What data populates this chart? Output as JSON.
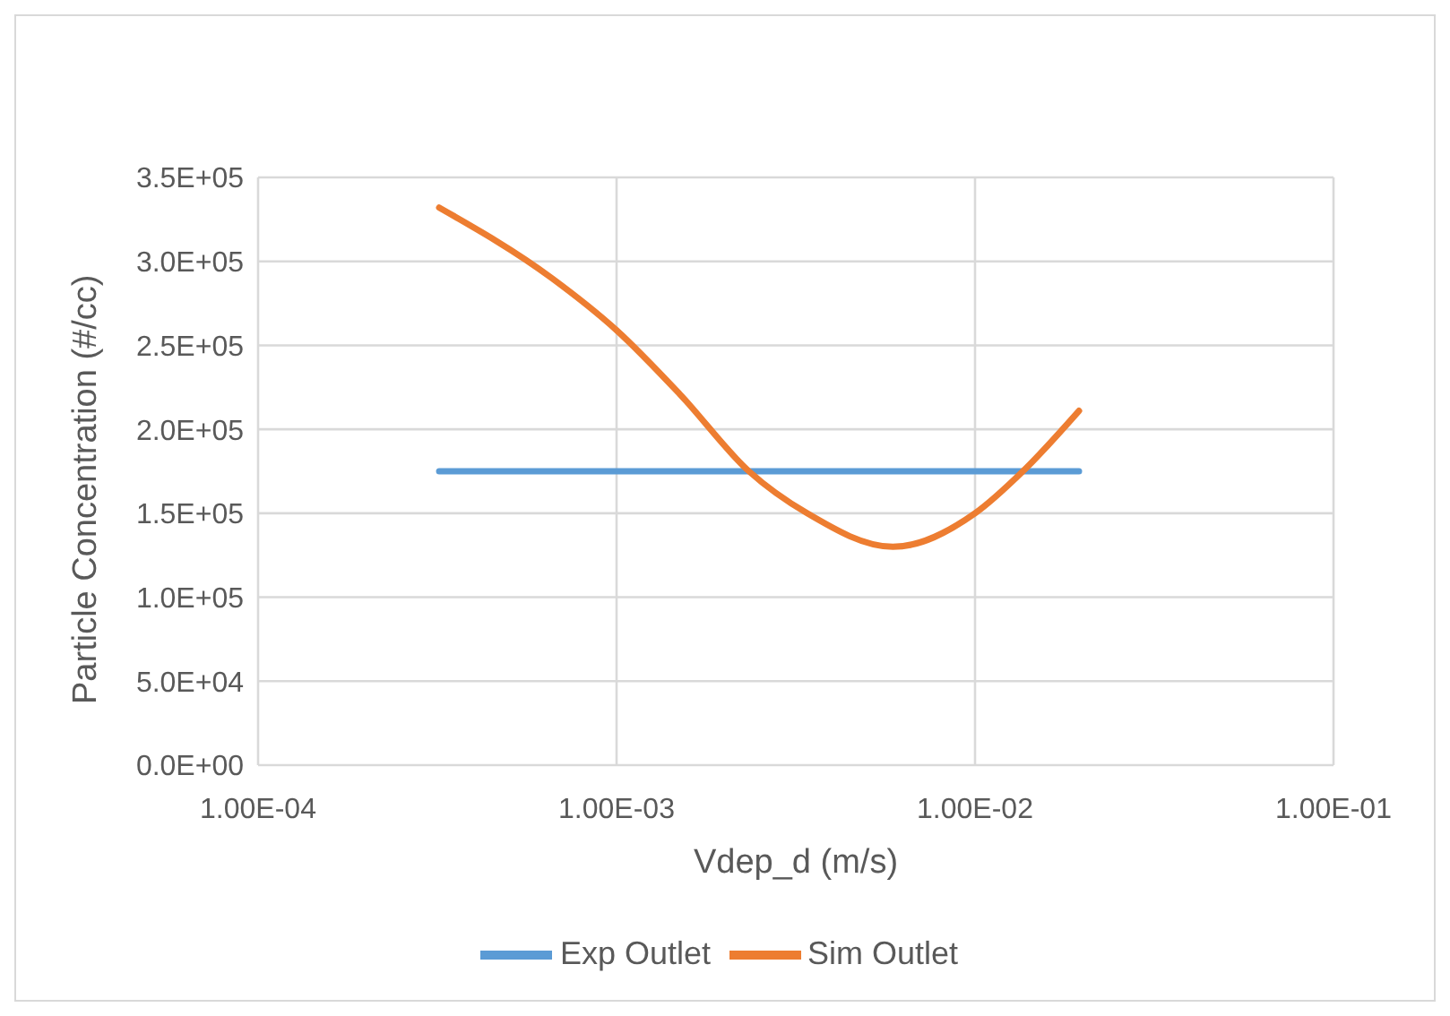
{
  "chart_data": {
    "type": "line",
    "xlabel": "Vdep_d (m/s)",
    "ylabel": "Particle Concentration (#/cc)",
    "log": "x",
    "grid": true,
    "legend": "bottom",
    "marker": "none",
    "line_style": "solid",
    "xlim": [
      0.0001,
      0.1
    ],
    "xticks": [
      {
        "value": 0.0001,
        "label": "1.00E-04"
      },
      {
        "value": 0.001,
        "label": "1.00E-03"
      },
      {
        "value": 0.01,
        "label": "1.00E-02"
      },
      {
        "value": 0.1,
        "label": "1.00E-01"
      }
    ],
    "ylim": [
      0,
      350000
    ],
    "yticks": [
      {
        "value": 0,
        "label": "0.0E+00"
      },
      {
        "value": 50000,
        "label": "5.0E+04"
      },
      {
        "value": 100000,
        "label": "1.0E+05"
      },
      {
        "value": 150000,
        "label": "1.5E+05"
      },
      {
        "value": 200000,
        "label": "2.0E+05"
      },
      {
        "value": 250000,
        "label": "2.5E+05"
      },
      {
        "value": 300000,
        "label": "3.0E+05"
      },
      {
        "value": 350000,
        "label": "3.5E+05"
      }
    ],
    "series": [
      {
        "name": "Exp Outlet",
        "color": "#5b9bd5",
        "x": [
          0.00032,
          0.0195
        ],
        "values": [
          175000,
          175000
        ]
      },
      {
        "name": "Sim Outlet",
        "color": "#ed7d31",
        "x": [
          0.00032,
          0.00066,
          0.001,
          0.0015,
          0.00234,
          0.0034,
          0.0059,
          0.01,
          0.0136,
          0.0195
        ],
        "values": [
          332000,
          290000,
          259000,
          221000,
          175000,
          150000,
          130000,
          150000,
          175000,
          211000
        ]
      }
    ]
  }
}
